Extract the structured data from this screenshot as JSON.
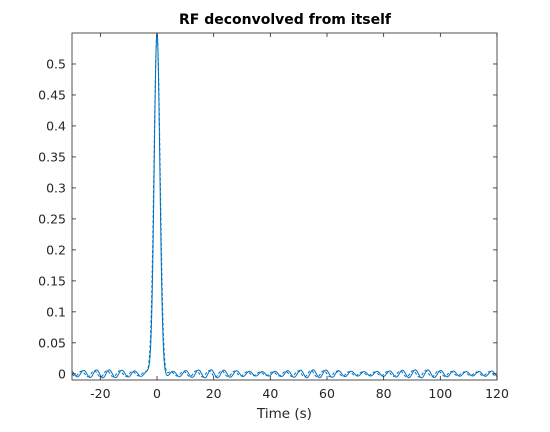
{
  "chart_data": {
    "type": "line",
    "title": "RF deconvolved from itself",
    "xlabel": "Time (s)",
    "ylabel": "",
    "xlim": [
      -30,
      120
    ],
    "ylim": [
      -0.01,
      0.55
    ],
    "grid": false,
    "legend": "none",
    "x_ticks": [
      -20,
      0,
      20,
      40,
      60,
      80,
      100,
      120
    ],
    "x_tick_labels": [
      "-20",
      "0",
      "20",
      "40",
      "60",
      "80",
      "100",
      "120"
    ],
    "y_ticks": [
      0,
      0.05,
      0.1,
      0.15,
      0.2,
      0.25,
      0.3,
      0.35,
      0.4,
      0.45,
      0.5
    ],
    "y_tick_labels": [
      "0",
      "0.05",
      "0.1",
      "0.15",
      "0.2",
      "0.25",
      "0.3",
      "0.35",
      "0.4",
      "0.45",
      "0.5"
    ],
    "colors": {
      "series": "#0072bd",
      "axes": "#262626"
    },
    "series": [
      {
        "style": "solid",
        "peak": {
          "x": 0,
          "y": 0.55
        },
        "peak_halfwidth_s": 1.0,
        "ripple_amplitude": 0.005,
        "ripple_period_s": 4.5
      },
      {
        "style": "dashed",
        "peak": {
          "x": 0,
          "y": 0.55
        },
        "peak_halfwidth_s": 1.1,
        "ripple_amplitude": 0.004,
        "ripple_period_s": 4.5
      }
    ]
  }
}
